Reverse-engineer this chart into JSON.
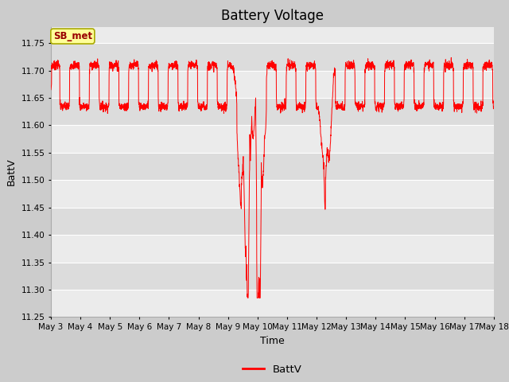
{
  "title": "Battery Voltage",
  "xlabel": "Time",
  "ylabel": "BattV",
  "legend_label": "BattV",
  "line_color": "#FF0000",
  "fig_bg_color": "#CCCCCC",
  "plot_bg_color_light": "#EBEBEB",
  "plot_bg_color_dark": "#DCDCDC",
  "ylim": [
    11.25,
    11.78
  ],
  "yticks": [
    11.25,
    11.3,
    11.35,
    11.4,
    11.45,
    11.5,
    11.55,
    11.6,
    11.65,
    11.7,
    11.75
  ],
  "x_tick_labels": [
    "May 3",
    "May 4",
    "May 5",
    "May 6",
    "May 7",
    "May 8",
    "May 9",
    "May 10",
    "May 11",
    "May 12",
    "May 13",
    "May 14",
    "May 15",
    "May 16",
    "May 17",
    "May 18"
  ],
  "annotation_text": "SB_met",
  "annotation_bg": "#FFFF99",
  "annotation_border": "#AAAA00",
  "annotation_text_color": "#990000"
}
